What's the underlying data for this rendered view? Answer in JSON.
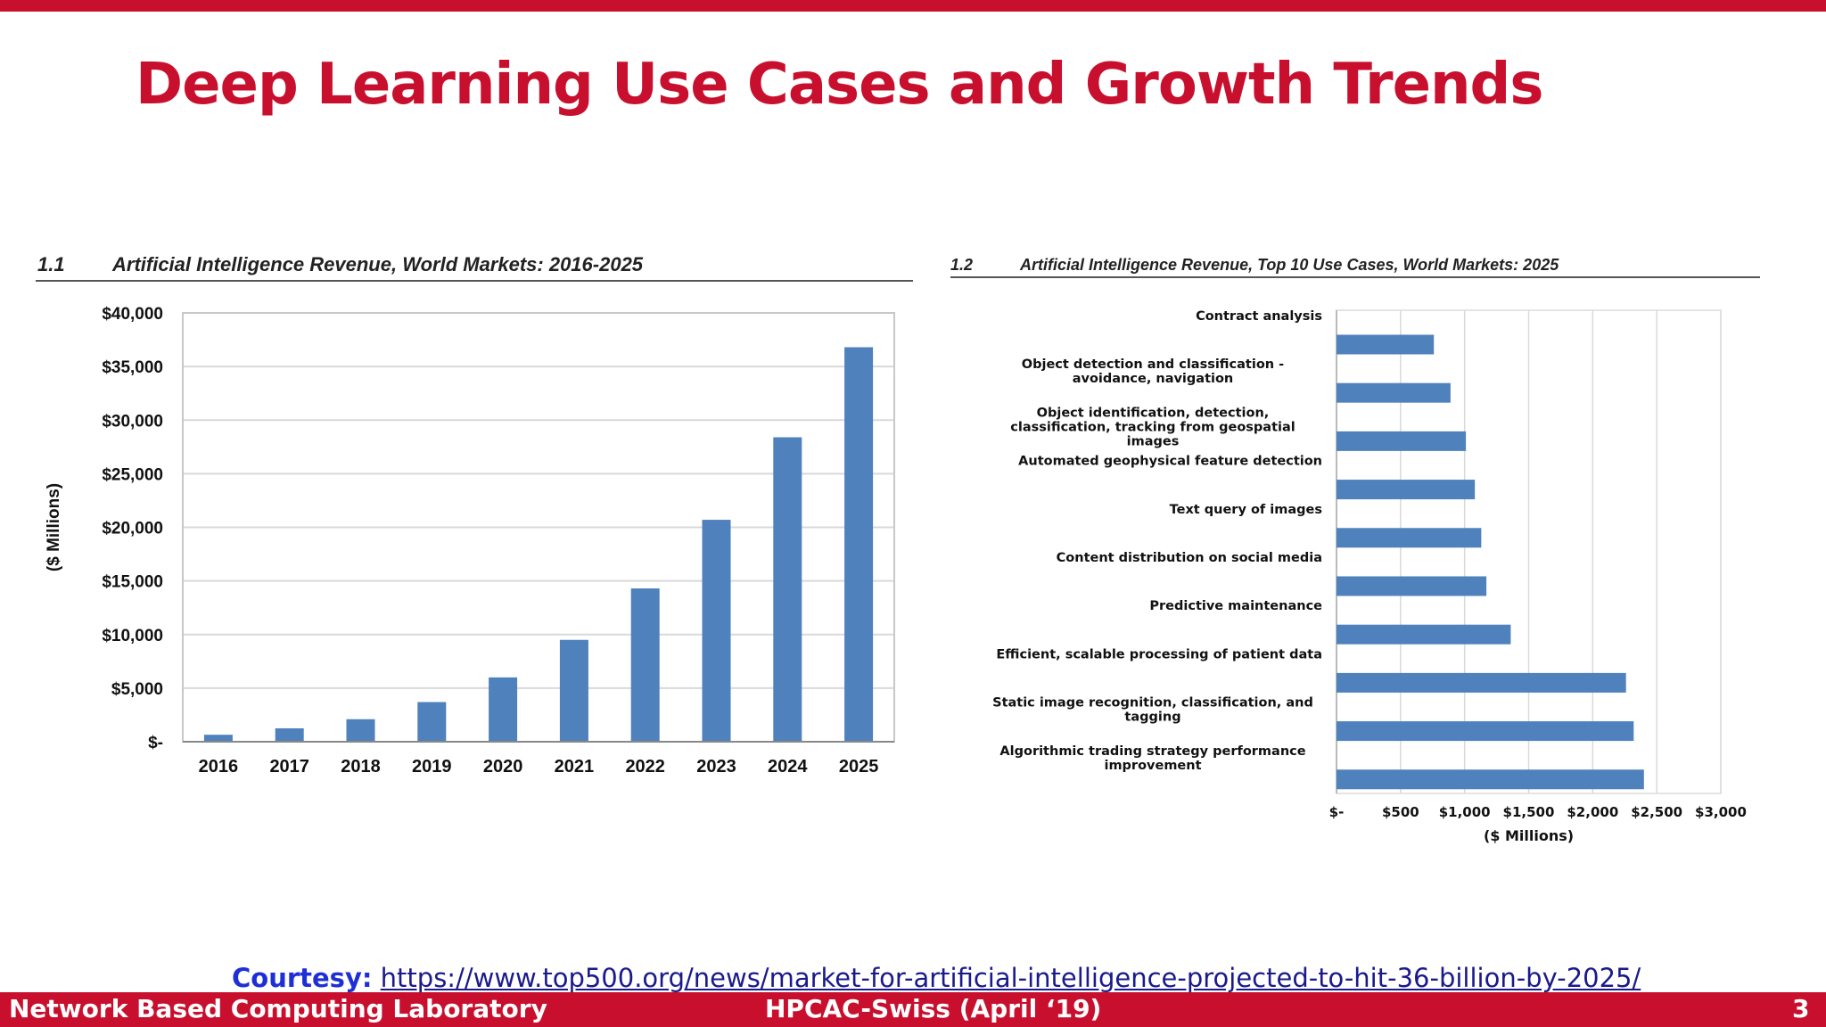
{
  "slide": {
    "title": "Deep Learning Use Cases and Growth Trends",
    "accent_color": "#c8102e",
    "courtesy_label": "Courtesy:",
    "courtesy_url": "https://www.top500.org/news/market-for-artificial-intelligence-projected-to-hit-36-billion-by-2025/",
    "footer_left": "Network Based Computing Laboratory",
    "footer_center": "HPCAC-Swiss (April ‘19)",
    "footer_page": "3"
  },
  "chart_data": [
    {
      "type": "bar",
      "number": "1.1",
      "title": "Artificial Intelligence Revenue, World Markets: 2016-2025",
      "categories": [
        "2016",
        "2017",
        "2018",
        "2019",
        "2020",
        "2021",
        "2022",
        "2023",
        "2024",
        "2025"
      ],
      "values": [
        650,
        1250,
        2100,
        3700,
        6000,
        9500,
        14300,
        20700,
        28400,
        36800
      ],
      "ylabel": "($ Millions)",
      "xlabel": "",
      "ylim": [
        0,
        40000
      ],
      "yticks": [
        0,
        5000,
        10000,
        15000,
        20000,
        25000,
        30000,
        35000,
        40000
      ],
      "ytick_labels": [
        "$-",
        "$5,000",
        "$10,000",
        "$15,000",
        "$20,000",
        "$25,000",
        "$30,000",
        "$35,000",
        "$40,000"
      ],
      "grid": true,
      "bar_color": "#4f81bd"
    },
    {
      "type": "bar",
      "orientation": "horizontal",
      "number": "1.2",
      "title": "Artificial Intelligence Revenue, Top 10 Use Cases, World Markets: 2025",
      "categories": [
        [
          "Contract analysis"
        ],
        [
          "Object detection and classification -",
          "avoidance, navigation"
        ],
        [
          "Object identification, detection,",
          "classification, tracking from geospatial",
          "images"
        ],
        [
          "Automated geophysical feature detection"
        ],
        [
          "Text query of images"
        ],
        [
          "Content distribution on social media"
        ],
        [
          "Predictive maintenance"
        ],
        [
          "Efficient, scalable processing of patient data"
        ],
        [
          "Static image recognition, classification, and",
          "tagging"
        ],
        [
          "Algorithmic trading strategy performance",
          "improvement"
        ]
      ],
      "values": [
        760,
        890,
        1010,
        1080,
        1130,
        1170,
        1360,
        2260,
        2320,
        2400
      ],
      "xlabel": "($ Millions)",
      "ylabel": "",
      "xlim": [
        0,
        3000
      ],
      "xticks": [
        0,
        500,
        1000,
        1500,
        2000,
        2500,
        3000
      ],
      "xtick_labels": [
        "$-",
        "$500",
        "$1,000",
        "$1,500",
        "$2,000",
        "$2,500",
        "$3,000"
      ],
      "grid": true,
      "bar_color": "#4f81bd"
    }
  ]
}
